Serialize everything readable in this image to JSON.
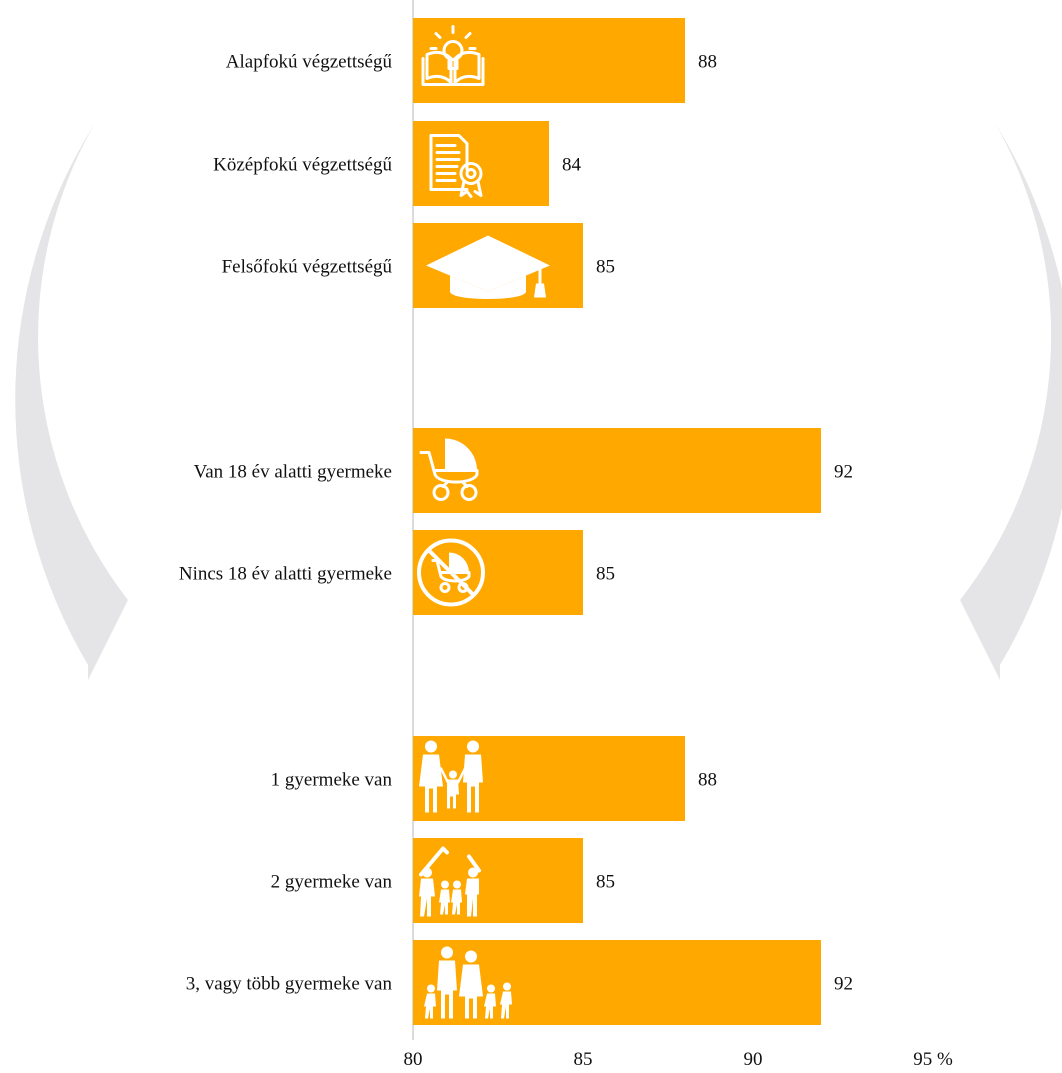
{
  "chart_data": {
    "type": "bar",
    "orientation": "horizontal",
    "categories": [
      "Alapfokú végzettségű",
      "Középfokú végzettségű",
      "Felsőfokú végzettségű",
      "Van 18 év alatti gyermeke",
      "Nincs 18 év alatti gyermeke",
      "1 gyermeke van",
      "2 gyermeke van",
      "3, vagy több gyermeke van"
    ],
    "values": [
      88,
      84,
      85,
      92,
      85,
      88,
      85,
      92
    ],
    "xlim": [
      80,
      95
    ],
    "xticks": [
      "80",
      "85",
      "90",
      "95 %"
    ],
    "groups": [
      [
        0,
        1,
        2
      ],
      [
        3,
        4
      ],
      [
        5,
        6,
        7
      ]
    ],
    "bar_icons": [
      "book-lightbulb-icon",
      "certificate-icon",
      "graduation-cap-icon",
      "stroller-icon",
      "no-stroller-icon",
      "family-one-child-icon",
      "family-two-children-icon",
      "family-many-children-icon"
    ],
    "bar_color": "#FFA800",
    "watermark_color": "#E5E5E7",
    "grid": false,
    "legend": "none"
  }
}
